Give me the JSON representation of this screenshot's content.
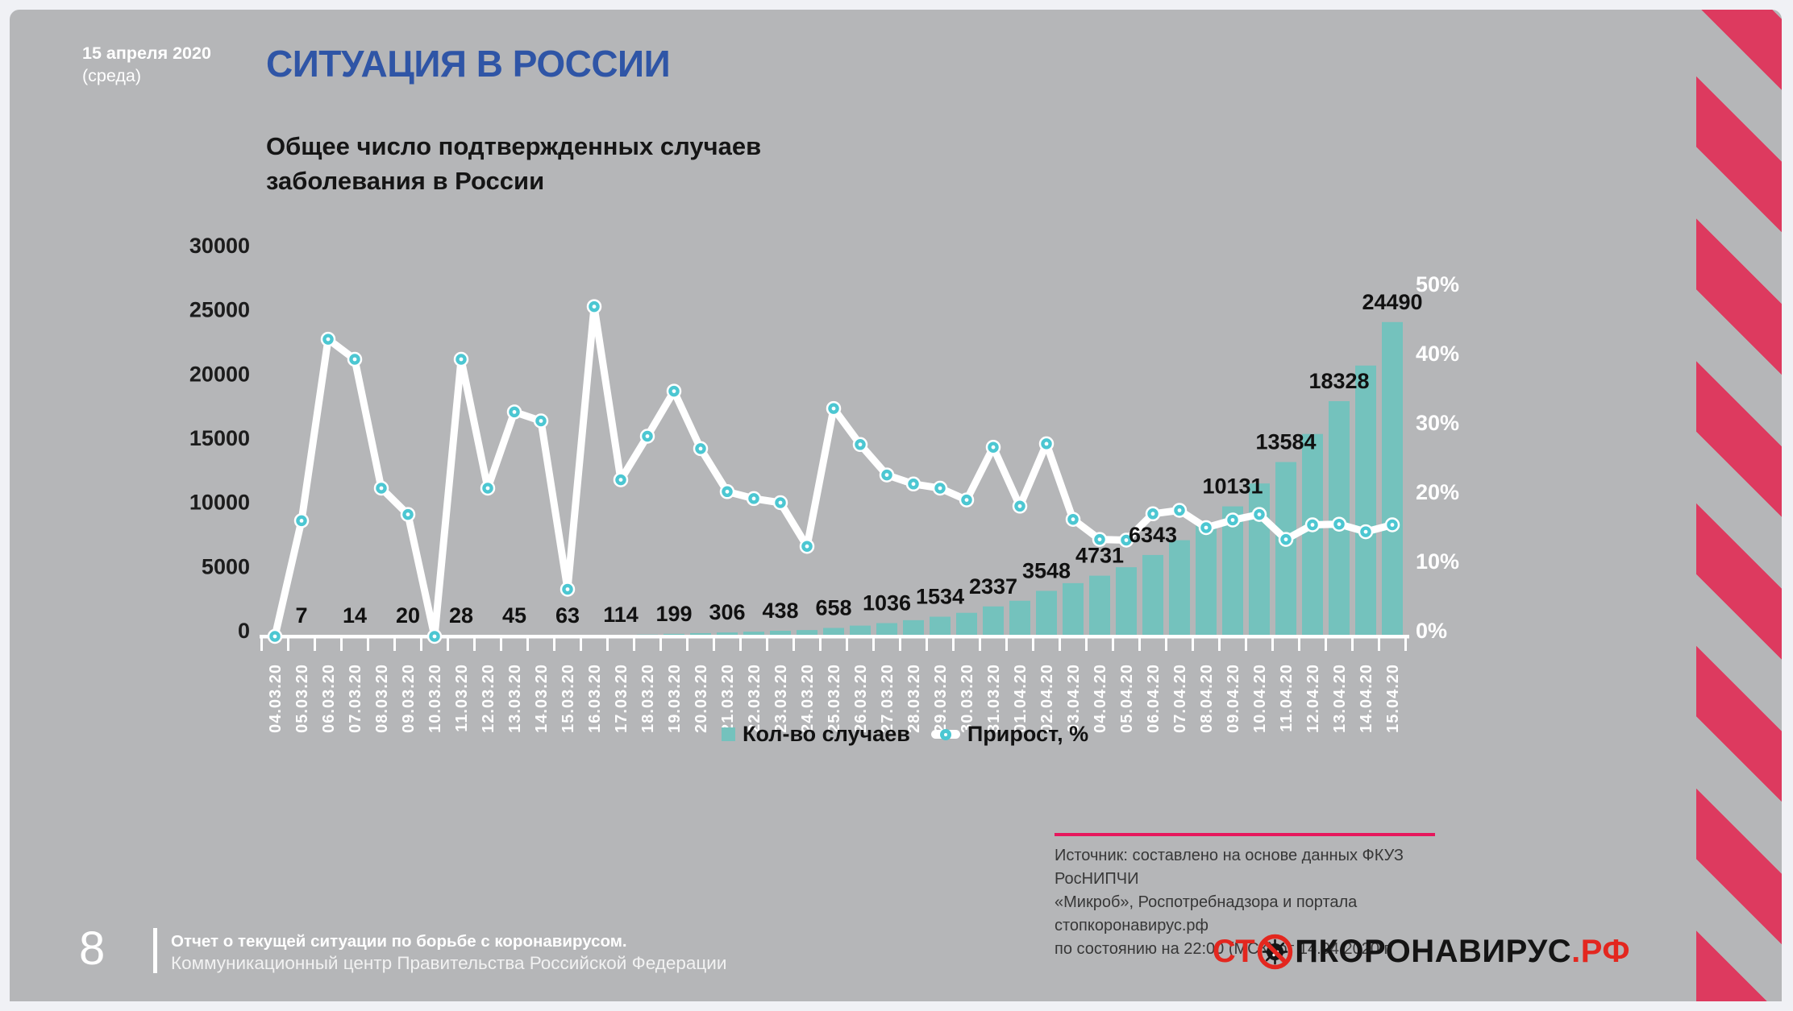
{
  "slide": {
    "date_line1": "15 апреля 2020",
    "date_line2": "(среда)",
    "title": "СИТУАЦИЯ В РОССИИ",
    "heading_line1": "Общее число подтвержденных случаев",
    "heading_line2": "заболевания в России"
  },
  "source": {
    "line1": "Источник: составлено на основе данных ФКУЗ РосНИПЧИ",
    "line2": "«Микроб», Роспотребнадзора и портала стопкоронавирус.рф",
    "line3": "по состоянию на 22:00 (МСК) от 14.04.2020 г."
  },
  "footer": {
    "page_number": "8",
    "line1": "Отчет о текущей ситуации по борьбе с коронавирусом.",
    "line2": "Коммуникационный центр Правительства Российской Федерации"
  },
  "logo": {
    "part1": "СТ",
    "part2": "ПКОРОНАВИРУС",
    "part3": ".РФ"
  },
  "colors": {
    "slide_background": "#b5b6b8",
    "bar": "#74c2bd",
    "line": "#ffffff",
    "marker": "#4cc7d2",
    "title_blue": "#2f55a6",
    "stripes_crimson": "#dd3a5f",
    "source_divider": "#e6175c",
    "logo_red": "#e3271f"
  },
  "chart_data": {
    "type": "bar",
    "combo": "bar+line",
    "title": "Общее число подтвержденных случаев заболевания в России",
    "xlabel": "",
    "ylabel_left": "Кол-во случаев",
    "ylabel_right": "Прирост, %",
    "grid": false,
    "legend_position": "bottom",
    "categories": [
      "04.03.20",
      "05.03.20",
      "06.03.20",
      "07.03.20",
      "08.03.20",
      "09.03.20",
      "10.03.20",
      "11.03.20",
      "12.03.20",
      "13.03.20",
      "14.03.20",
      "15.03.20",
      "16.03.20",
      "17.03.20",
      "18.03.20",
      "19.03.20",
      "20.03.20",
      "21.03.20",
      "22.03.20",
      "23.03.20",
      "24.03.20",
      "25.03.20",
      "26.03.20",
      "27.03.20",
      "28.03.20",
      "29.03.20",
      "30.03.20",
      "31.03.20",
      "01.04.20",
      "02.04.20",
      "03.04.20",
      "04.04.20",
      "05.04.20",
      "06.04.20",
      "07.04.20",
      "08.04.20",
      "09.04.20",
      "10.04.20",
      "11.04.20",
      "12.04.20",
      "13.04.20",
      "14.04.20",
      "15.04.20"
    ],
    "series": [
      {
        "name": "Кол-во случаев",
        "type": "bar",
        "axis": "left",
        "values": [
          6,
          7,
          10,
          14,
          17,
          20,
          20,
          28,
          34,
          45,
          59,
          63,
          93,
          114,
          147,
          199,
          253,
          306,
          367,
          438,
          495,
          658,
          840,
          1036,
          1264,
          1534,
          1836,
          2337,
          2777,
          3548,
          4149,
          4731,
          5389,
          6343,
          7497,
          8672,
          10131,
          11917,
          13584,
          15770,
          18328,
          21102,
          24490
        ]
      },
      {
        "name": "Прирост, %",
        "type": "line",
        "axis": "right",
        "values": [
          0,
          16.7,
          42.9,
          40.0,
          21.4,
          17.6,
          0.0,
          40.0,
          21.4,
          32.4,
          31.1,
          6.8,
          47.6,
          22.6,
          28.9,
          35.4,
          27.1,
          20.9,
          19.9,
          19.3,
          13.0,
          32.9,
          27.7,
          23.3,
          22.0,
          21.4,
          19.7,
          27.3,
          18.8,
          27.8,
          16.9,
          14.0,
          13.9,
          17.7,
          18.2,
          15.7,
          16.8,
          17.6,
          14.0,
          16.1,
          16.2,
          15.1,
          16.1
        ]
      }
    ],
    "value_labels": [
      null,
      7,
      null,
      14,
      null,
      20,
      null,
      28,
      null,
      45,
      null,
      63,
      null,
      114,
      null,
      199,
      null,
      306,
      null,
      438,
      null,
      658,
      null,
      1036,
      null,
      1534,
      null,
      2337,
      null,
      3548,
      null,
      4731,
      null,
      6343,
      null,
      null,
      10131,
      null,
      13584,
      null,
      18328,
      null,
      24490
    ],
    "left_axis": {
      "min": 0,
      "max": 30000,
      "step": 5000,
      "ticks": [
        "0",
        "5000",
        "10000",
        "15000",
        "20000",
        "25000",
        "30000"
      ]
    },
    "right_axis": {
      "min": 0,
      "max": 50,
      "step": 10,
      "ticks": [
        "0%",
        "10%",
        "20%",
        "30%",
        "40%",
        "50%"
      ]
    },
    "legend": [
      {
        "label": "Кол-во случаев",
        "swatch": "square"
      },
      {
        "label": "Прирост, %",
        "swatch": "line-dot"
      }
    ]
  }
}
